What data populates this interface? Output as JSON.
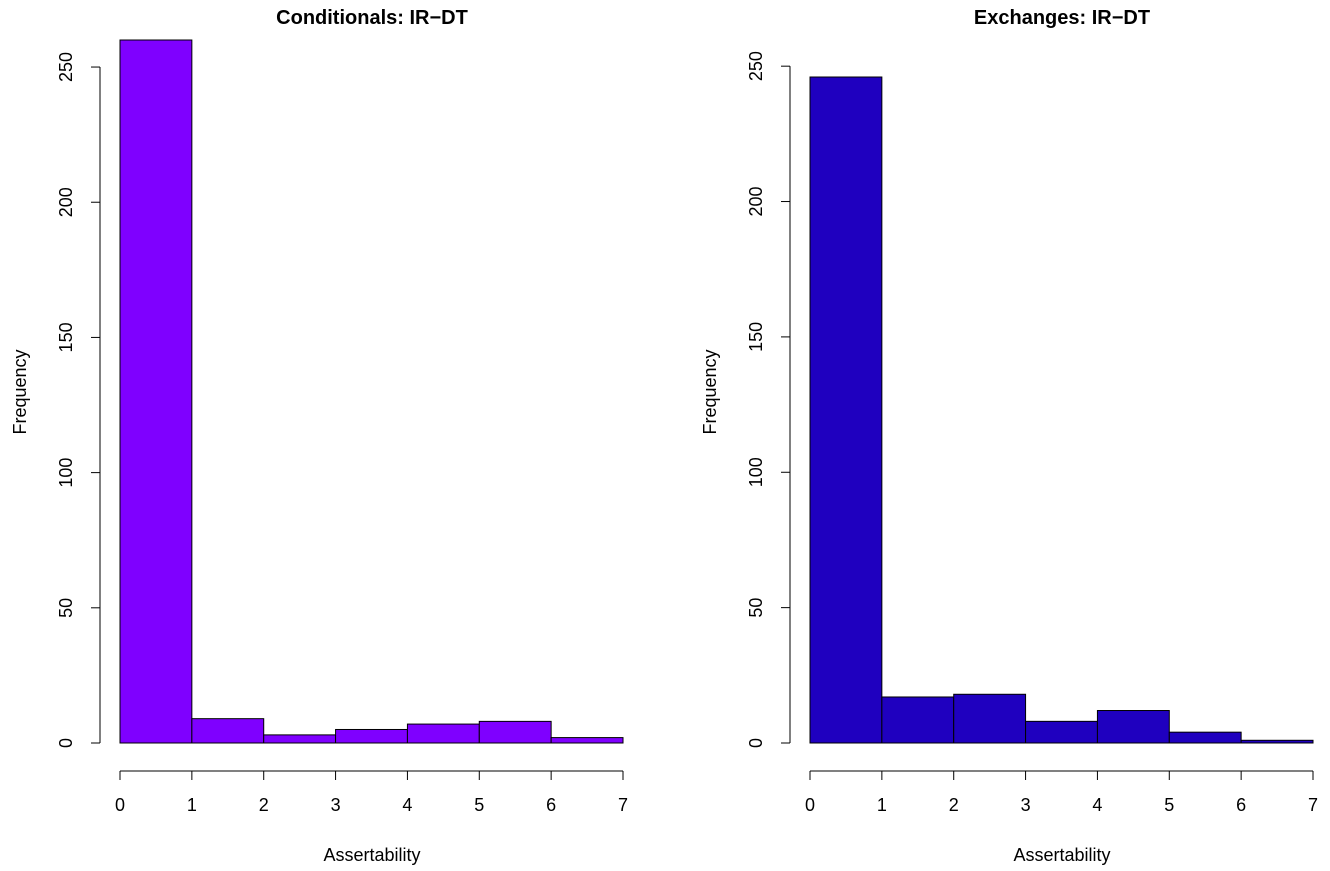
{
  "chart_data": [
    {
      "type": "bar",
      "title": "Conditionals: IR−DT",
      "xlabel": "Assertability",
      "ylabel": "Frequency",
      "bins": [
        [
          0,
          1
        ],
        [
          1,
          2
        ],
        [
          2,
          3
        ],
        [
          3,
          4
        ],
        [
          4,
          5
        ],
        [
          5,
          6
        ],
        [
          6,
          7
        ]
      ],
      "values": [
        260,
        9,
        3,
        5,
        7,
        8,
        2
      ],
      "xlim": [
        0,
        7
      ],
      "ylim": [
        0,
        260
      ],
      "xticks": [
        0,
        1,
        2,
        3,
        4,
        5,
        6,
        7
      ],
      "yticks": [
        0,
        50,
        100,
        150,
        200,
        250
      ],
      "color": "#7F00FF",
      "grid": false
    },
    {
      "type": "bar",
      "title": "Exchanges: IR−DT",
      "xlabel": "Assertability",
      "ylabel": "Frequency",
      "bins": [
        [
          0,
          1
        ],
        [
          1,
          2
        ],
        [
          2,
          3
        ],
        [
          3,
          4
        ],
        [
          4,
          5
        ],
        [
          5,
          6
        ],
        [
          6,
          7
        ]
      ],
      "values": [
        246,
        17,
        18,
        8,
        12,
        4,
        1
      ],
      "xlim": [
        0,
        7
      ],
      "ylim": [
        0,
        246
      ],
      "xticks": [
        0,
        1,
        2,
        3,
        4,
        5,
        6,
        7
      ],
      "yticks": [
        0,
        50,
        100,
        150,
        200,
        250
      ],
      "color": "#1F00BF",
      "grid": false
    }
  ]
}
